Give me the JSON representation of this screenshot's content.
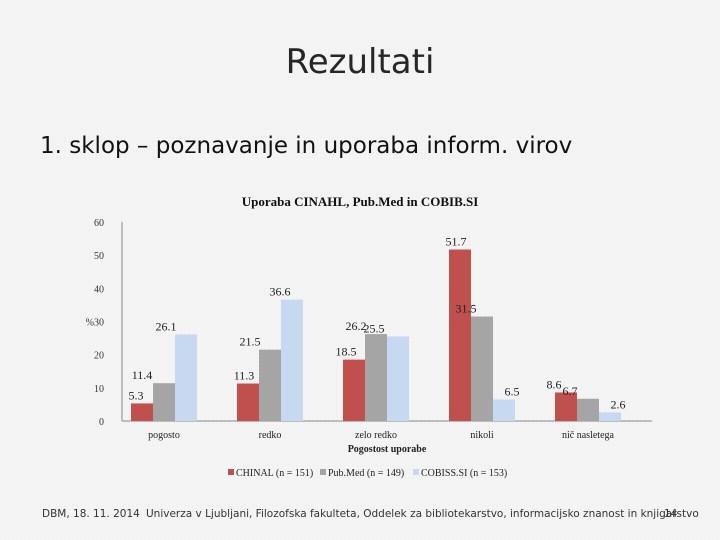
{
  "slide": {
    "title": "Rezultati",
    "heading": "1.  sklop – poznavanje in uporaba inform. virov"
  },
  "footer": {
    "date": "DBM, 18. 11. 2014",
    "institution": "Univerza v Ljubljani, Filozofska fakulteta, Oddelek za bibliotekarstvo, informacijsko znanost in knjigarstvo",
    "page": "14"
  },
  "chart_data": {
    "type": "bar",
    "title": "Uporaba CINAHL, Pub.Med in COBIB.SI",
    "xlabel": "Pogostost uporabe",
    "ylabel": "%",
    "ylim": [
      0,
      60
    ],
    "yticks": [
      0,
      10,
      20,
      30,
      40,
      50,
      60
    ],
    "ytick_labels": [
      "0",
      "10",
      "20",
      "%30",
      "40",
      "50",
      "60"
    ],
    "categories": [
      "pogosto",
      "redko",
      "zelo redko",
      "nikoli",
      "nič nasletega"
    ],
    "series": [
      {
        "name": "CHINAL (n = 151)",
        "color": "#c0504d",
        "values": [
          5.3,
          11.3,
          18.5,
          51.7,
          8.6
        ]
      },
      {
        "name": "Pub.Med (n = 149)",
        "color": "#a5a5a5",
        "values": [
          11.4,
          21.5,
          26.2,
          31.5,
          6.7
        ]
      },
      {
        "name": "COBISS.SI (n = 153)",
        "color": "#c6d9f1",
        "values": [
          26.1,
          36.6,
          25.5,
          6.5,
          2.6
        ]
      }
    ],
    "legend_position": "bottom",
    "grid": false
  }
}
